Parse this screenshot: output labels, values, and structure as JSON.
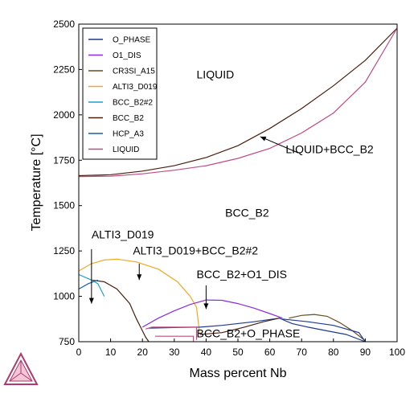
{
  "chart_data": {
    "type": "line",
    "title": "",
    "xlabel": "Mass percent Nb",
    "ylabel": "Temperature [°C]",
    "xlim": [
      0,
      100
    ],
    "ylim": [
      750,
      2500
    ],
    "xticks": [
      "0",
      "10",
      "20",
      "30",
      "40",
      "50",
      "60",
      "70",
      "80",
      "90",
      "100"
    ],
    "yticks": [
      "750",
      "1000",
      "1250",
      "1500",
      "1750",
      "2000",
      "2250",
      "2500"
    ],
    "grid": false,
    "legend_position": "top-left",
    "legend": [
      {
        "name": "O_PHASE",
        "color": "#1f3a93"
      },
      {
        "name": "O1_DIS",
        "color": "#8a2be2"
      },
      {
        "name": "CR3SI_A15",
        "color": "#6b4f1d"
      },
      {
        "name": "ALTI3_D019",
        "color": "#f5a623"
      },
      {
        "name": "BCC_B2#2",
        "color": "#1e9fd1"
      },
      {
        "name": "BCC_B2",
        "color": "#4a1f0f"
      },
      {
        "name": "HCP_A3",
        "color": "#1f5fa0"
      },
      {
        "name": "LIQUID",
        "color": "#c04c84"
      }
    ],
    "series": [
      {
        "name": "BCC_B2",
        "color": "#4a1f0f",
        "x": [
          0,
          10,
          20,
          30,
          40,
          50,
          60,
          70,
          80,
          90,
          100
        ],
        "y": [
          1665,
          1670,
          1690,
          1720,
          1765,
          1830,
          1925,
          2035,
          2160,
          2300,
          2478
        ]
      },
      {
        "name": "LIQUID",
        "color": "#c04c84",
        "x": [
          0,
          10,
          20,
          30,
          40,
          50,
          60,
          70,
          80,
          90,
          100
        ],
        "y": [
          1660,
          1662,
          1675,
          1695,
          1720,
          1760,
          1815,
          1900,
          2010,
          2180,
          2478
        ]
      },
      {
        "name": "ALTI3_D019",
        "color": "#f5a623",
        "x": [
          0,
          4,
          8,
          12,
          18,
          25,
          31,
          35,
          37,
          38
        ],
        "y": [
          1140,
          1180,
          1200,
          1205,
          1190,
          1150,
          1080,
          1000,
          940,
          790
        ]
      },
      {
        "name": "BCC_B2",
        "color": "#4a1f0f",
        "x": [
          4,
          8,
          12,
          16,
          18,
          20,
          21,
          22
        ],
        "y": [
          1090,
          1080,
          1040,
          960,
          880,
          810,
          775,
          750
        ]
      },
      {
        "name": "HCP_A3",
        "color": "#1f5fa0",
        "x": [
          0,
          3,
          6
        ],
        "y": [
          1040,
          1070,
          1090
        ]
      },
      {
        "name": "BCC_B2#2",
        "color": "#1e9fd1",
        "x": [
          0,
          4,
          6,
          8
        ],
        "y": [
          1120,
          1090,
          1070,
          1000
        ]
      },
      {
        "name": "O1_DIS",
        "color": "#8a2be2",
        "x": [
          20,
          25,
          30,
          35,
          40,
          45,
          50,
          55,
          60,
          64
        ],
        "y": [
          830,
          880,
          920,
          955,
          980,
          978,
          960,
          935,
          905,
          880
        ]
      },
      {
        "name": "CR3SI_A15",
        "color": "#6b4f1d",
        "x": [
          66,
          70,
          74,
          78,
          82,
          86,
          90
        ],
        "y": [
          880,
          895,
          900,
          890,
          855,
          810,
          755
        ]
      },
      {
        "name": "O_PHASE",
        "color": "#1f3a93",
        "x": [
          22,
          30,
          38,
          45,
          55,
          63,
          67,
          72,
          78,
          84,
          90
        ],
        "y": [
          825,
          828,
          830,
          840,
          860,
          880,
          850,
          830,
          810,
          790,
          750
        ]
      },
      {
        "name": "BCC_B2",
        "color": "#4a1f0f",
        "x": [
          38,
          45,
          52,
          58,
          63
        ],
        "y": [
          790,
          800,
          830,
          860,
          880
        ]
      },
      {
        "name": "LIQUID",
        "color": "#c04c84",
        "x": [
          21,
          23,
          37,
          37
        ],
        "y": [
          820,
          830,
          830,
          760
        ]
      },
      {
        "name": "LIQUID",
        "color": "#c04c84",
        "x": [
          24,
          36,
          36
        ],
        "y": [
          780,
          780,
          750
        ]
      },
      {
        "name": "O_PHASE",
        "color": "#1f3a93",
        "x": [
          64,
          72,
          80,
          88,
          90
        ],
        "y": [
          875,
          860,
          840,
          800,
          750
        ]
      }
    ],
    "annotations": [
      {
        "text": "LIQUID",
        "x": 37,
        "y": 2200
      },
      {
        "text": "LIQUID+BCC_B2",
        "x": 65,
        "y": 1790
      },
      {
        "text": "BCC_B2",
        "x": 46,
        "y": 1440
      },
      {
        "text": "ALTI3_D019",
        "x": 4,
        "y": 1320
      },
      {
        "text": "ALTI3_D019+BCC_B2#2",
        "x": 17,
        "y": 1230
      },
      {
        "text": "BCC_B2+O1_DIS",
        "x": 37,
        "y": 1100
      },
      {
        "text": "BCC_B2+O_PHASE",
        "x": 37,
        "y": 775
      }
    ],
    "arrows": [
      {
        "from": [
          69,
          1790
        ],
        "to": [
          57,
          1880
        ]
      },
      {
        "from": [
          4,
          1260
        ],
        "to": [
          4,
          960
        ]
      },
      {
        "from": [
          19,
          1180
        ],
        "to": [
          19,
          1090
        ]
      },
      {
        "from": [
          40,
          1060
        ],
        "to": [
          40,
          930
        ]
      }
    ]
  }
}
